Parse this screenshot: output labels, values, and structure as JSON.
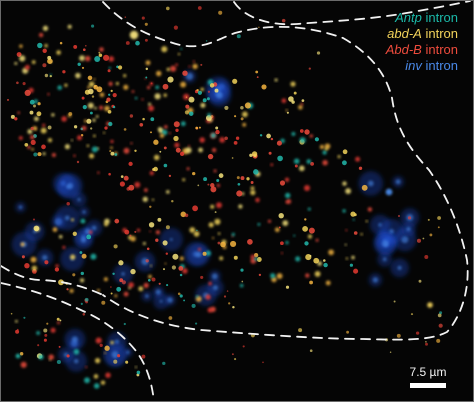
{
  "legend": [
    {
      "gene": "Antp",
      "suffix": " intron",
      "color": "#1bb9a9"
    },
    {
      "gene": "abd-A",
      "suffix": " intron",
      "color": "#f2d35b"
    },
    {
      "gene": "Abd-B",
      "suffix": " intron",
      "color": "#ef4c3d"
    },
    {
      "gene": "inv",
      "suffix": " intron",
      "color": "#4a89e8"
    }
  ],
  "scale_bar": {
    "label": "7.5 µm"
  },
  "outline_color": "#f2f2f2",
  "background_color": "#050505"
}
